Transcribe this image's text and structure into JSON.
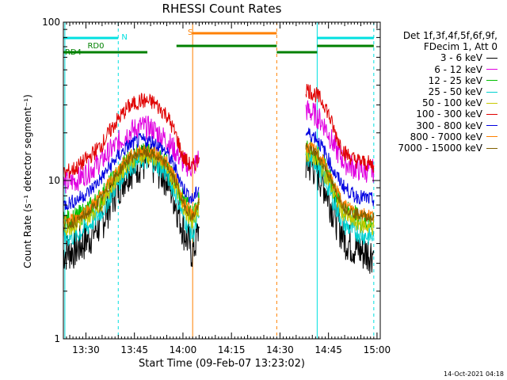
{
  "chart_data": {
    "type": "line",
    "title": "RHESSI Count Rates",
    "xlabel": "Start Time (09-Feb-07 13:23:02)",
    "ylabel": "Count Rate (s⁻¹ detector segment⁻¹)",
    "yscale": "log",
    "ylim": [
      1,
      100
    ],
    "xlim": [
      "13:23:02",
      "15:01"
    ],
    "x_ticks": [
      "13:30",
      "13:45",
      "14:00",
      "14:15",
      "14:30",
      "14:45",
      "15:00"
    ],
    "y_ticks": [
      "1",
      "10",
      "100"
    ],
    "grid": false,
    "legend_header": [
      "Det 1f,3f,4f,5f,6f,9f,",
      "FDecim 1, Att 0"
    ],
    "legend_position": "right",
    "series": [
      {
        "name": "3 - 6 keV",
        "color": "#000000",
        "x": [
          "13:23",
          "13:27",
          "13:31",
          "13:35",
          "13:39",
          "13:43",
          "13:47",
          "13:51",
          "13:55",
          "13:58",
          "14:00",
          "14:03",
          "14:05",
          "14:34",
          "14:38",
          "14:41",
          "14:44",
          "14:47",
          "14:50",
          "14:53",
          "14:56",
          "14:59"
        ],
        "y": [
          3.5,
          3.7,
          4.4,
          5.5,
          8.5,
          11.5,
          13,
          12.5,
          10.5,
          7,
          5,
          3.5,
          5,
          null,
          13,
          12,
          9,
          6,
          4.3,
          3.8,
          3.5,
          3.5
        ]
      },
      {
        "name": "6 - 12 keV",
        "color": "#e000e0",
        "x": [
          "13:23",
          "13:27",
          "13:31",
          "13:35",
          "13:39",
          "13:43",
          "13:47",
          "13:51",
          "13:55",
          "13:58",
          "14:00",
          "14:03",
          "14:05",
          "14:34",
          "14:38",
          "14:41",
          "14:44",
          "14:47",
          "14:50",
          "14:53",
          "14:56",
          "14:59"
        ],
        "y": [
          9.5,
          10,
          11.5,
          13.5,
          16.5,
          20,
          22,
          21,
          18,
          15,
          13,
          12,
          14,
          null,
          28,
          26,
          22,
          16,
          13,
          12,
          11.5,
          11.5
        ]
      },
      {
        "name": "12 - 25 keV",
        "color": "#00c000",
        "x": [
          "13:23",
          "13:27",
          "13:31",
          "13:35",
          "13:39",
          "13:43",
          "13:47",
          "13:51",
          "13:55",
          "13:58",
          "14:00",
          "14:03",
          "14:05",
          "14:34",
          "14:38",
          "14:41",
          "14:44",
          "14:47",
          "14:50",
          "14:53",
          "14:56",
          "14:59"
        ],
        "y": [
          5.5,
          5.8,
          6.6,
          8,
          10.5,
          13.5,
          15,
          14.5,
          12.5,
          9.5,
          7.5,
          6,
          7.5,
          null,
          16,
          15,
          12,
          8.5,
          6.5,
          6,
          5.5,
          5.5
        ]
      },
      {
        "name": "25 - 50 keV",
        "color": "#00d0d0",
        "x": [
          "13:23",
          "13:27",
          "13:31",
          "13:35",
          "13:39",
          "13:43",
          "13:47",
          "13:51",
          "13:55",
          "13:58",
          "14:00",
          "14:03",
          "14:05",
          "14:34",
          "14:38",
          "14:41",
          "14:44",
          "14:47",
          "14:50",
          "14:53",
          "14:56",
          "14:59"
        ],
        "y": [
          4.3,
          4.5,
          5.2,
          6.4,
          9,
          12,
          13.5,
          13,
          11,
          8,
          6,
          4.5,
          6,
          null,
          14,
          13,
          10,
          7,
          5.2,
          4.8,
          4.5,
          4.4
        ]
      },
      {
        "name": "50 - 100 keV",
        "color": "#c8c800",
        "x": [
          "13:23",
          "13:27",
          "13:31",
          "13:35",
          "13:39",
          "13:43",
          "13:47",
          "13:51",
          "13:55",
          "13:58",
          "14:00",
          "14:03",
          "14:05",
          "14:34",
          "14:38",
          "14:41",
          "14:44",
          "14:47",
          "14:50",
          "14:53",
          "14:56",
          "14:59"
        ],
        "y": [
          5,
          5.3,
          6,
          7.4,
          10,
          13,
          14.5,
          14,
          12,
          9,
          7,
          5.5,
          7,
          null,
          15,
          14,
          11,
          8,
          6,
          5.5,
          5.2,
          5.1
        ]
      },
      {
        "name": "100 - 300 keV",
        "color": "#e00000",
        "x": [
          "13:23",
          "13:27",
          "13:31",
          "13:35",
          "13:39",
          "13:43",
          "13:47",
          "13:51",
          "13:55",
          "13:58",
          "14:00",
          "14:03",
          "14:05",
          "14:34",
          "14:38",
          "14:41",
          "14:44",
          "14:47",
          "14:50",
          "14:53",
          "14:56",
          "14:59"
        ],
        "y": [
          11,
          12,
          14,
          17,
          23,
          29,
          32,
          31,
          26,
          19,
          14,
          12,
          14,
          null,
          38,
          35,
          30,
          20,
          15,
          13.5,
          13,
          12.5
        ]
      },
      {
        "name": "300 - 800 keV",
        "color": "#0000e0",
        "x": [
          "13:23",
          "13:27",
          "13:31",
          "13:35",
          "13:39",
          "13:43",
          "13:47",
          "13:51",
          "13:55",
          "13:58",
          "14:00",
          "14:03",
          "14:05",
          "14:34",
          "14:38",
          "14:41",
          "14:44",
          "14:47",
          "14:50",
          "14:53",
          "14:56",
          "14:59"
        ],
        "y": [
          7,
          7.5,
          8.5,
          10.5,
          13.5,
          16.5,
          18,
          17.5,
          15,
          11.5,
          9,
          7.5,
          9,
          null,
          20,
          19,
          15,
          11,
          9,
          8,
          7.8,
          7.5
        ]
      },
      {
        "name": "800 - 7000 keV",
        "color": "#ff8000",
        "x": [
          "13:23",
          "13:27",
          "13:31",
          "13:35",
          "13:39",
          "13:43",
          "13:47",
          "13:51",
          "13:55",
          "13:58",
          "14:00",
          "14:03",
          "14:05",
          "14:34",
          "14:38",
          "14:41",
          "14:44",
          "14:47",
          "14:50",
          "14:53",
          "14:56",
          "14:59"
        ],
        "y": [
          5.5,
          5.8,
          6.7,
          8.2,
          11,
          14,
          15.5,
          15,
          13,
          10,
          7.5,
          6,
          7.5,
          null,
          16.5,
          15.5,
          12.5,
          9,
          7,
          6.5,
          6.2,
          6
        ]
      },
      {
        "name": "7000 - 15000 keV",
        "color": "#806000",
        "x": [
          "13:23",
          "13:27",
          "13:31",
          "13:35",
          "13:39",
          "13:43",
          "13:47",
          "13:51",
          "13:55",
          "13:58",
          "14:00",
          "14:03",
          "14:05",
          "14:34",
          "14:38",
          "14:41",
          "14:44",
          "14:47",
          "14:50",
          "14:53",
          "14:56",
          "14:59"
        ],
        "y": [
          5.2,
          5.5,
          6.3,
          7.8,
          10.5,
          13.5,
          15,
          14.5,
          12.5,
          9.5,
          7.2,
          5.8,
          7.2,
          null,
          16,
          15,
          12,
          8.7,
          6.7,
          6.2,
          6,
          5.8
        ]
      }
    ],
    "annotations": [
      {
        "text": "N",
        "color": "#00e0e0"
      },
      {
        "text": "S",
        "color": "#ff8000"
      },
      {
        "text": "RD0",
        "color": "#008000"
      },
      {
        "text": "RD4",
        "color": "#008000"
      }
    ]
  },
  "footer": {
    "timestamp": "14-Oct-2021 04:18"
  }
}
